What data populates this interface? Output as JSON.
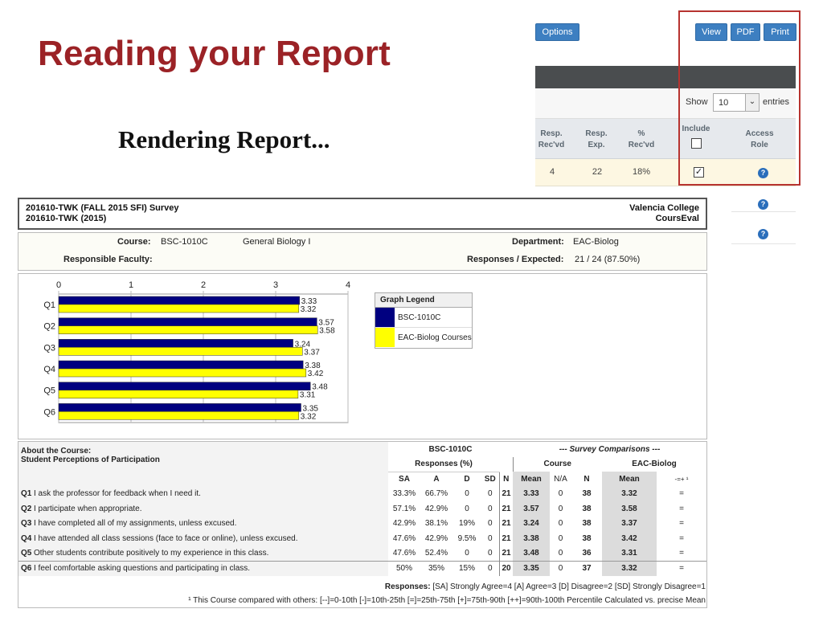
{
  "slide": {
    "title": "Reading your Report",
    "rendering_text": "Rendering Report..."
  },
  "panel": {
    "options_label": "Options",
    "view_label": "View",
    "pdf_label": "PDF",
    "print_label": "Print",
    "show_label": "Show",
    "entries_value": "10",
    "entries_label": "entries",
    "columns": [
      {
        "line1": "Resp.",
        "line2": "Rec'vd"
      },
      {
        "line1": "Resp.",
        "line2": "Exp."
      },
      {
        "line1": "%",
        "line2": "Rec'vd"
      },
      {
        "line1": "Include",
        "line2": ""
      },
      {
        "line1": "Access",
        "line2": "Role"
      }
    ],
    "row": {
      "resp_recvd": "4",
      "resp_exp": "22",
      "pct_recvd": "18%",
      "include_checked": true
    },
    "help_glyph": "?",
    "accent_color": "#3d7fc1",
    "highlight_color": "#b7332f"
  },
  "report": {
    "survey_line1": "201610-TWK (FALL 2015 SFI) Survey",
    "survey_line2": "201610-TWK (2015)",
    "college": "Valencia College",
    "system": "CoursEval",
    "course_label": "Course:",
    "course_code": "BSC-1010C",
    "course_name": "General Biology I",
    "department_label": "Department:",
    "department": "EAC-Biolog",
    "faculty_label": "Responsible Faculty:",
    "responses_label": "Responses / Expected:",
    "responses_value": "21 / 24 (87.50%)"
  },
  "chart_data": {
    "type": "bar",
    "orientation": "horizontal",
    "categories": [
      "Q1",
      "Q2",
      "Q3",
      "Q4",
      "Q5",
      "Q6"
    ],
    "series": [
      {
        "name": "BSC-1010C",
        "color": "#000080",
        "values": [
          3.33,
          3.57,
          3.24,
          3.38,
          3.48,
          3.35
        ],
        "labels": [
          "3.33",
          "3.57",
          "3.24",
          "3.38",
          "3.48",
          "3.35"
        ]
      },
      {
        "name": "EAC-Biolog Courses",
        "color": "#ffff00",
        "values": [
          3.32,
          3.58,
          3.37,
          3.42,
          3.31,
          3.32
        ],
        "labels": [
          "3.32",
          "3.58",
          "3.37",
          "3.42",
          "3.31",
          "3.32"
        ]
      }
    ],
    "xlim": [
      0,
      4
    ],
    "xticks": [
      "0",
      "1",
      "2",
      "3",
      "4"
    ],
    "legend_title": "Graph Legend",
    "legend_placement": "right"
  },
  "table": {
    "section_title": "About the Course:",
    "section_subtitle": "Student Perceptions of Participation",
    "course_group": "BSC-1010C",
    "comparison_group": "--- Survey Comparisons ---",
    "responses_pct": "Responses (%)",
    "course_sub": "Course",
    "dept_sub": "EAC-Biolog",
    "col_headers": [
      "SA",
      "A",
      "D",
      "SD",
      "N",
      "Mean",
      "N/A",
      "N",
      "Mean",
      "-=+ ¹"
    ],
    "rows": [
      {
        "q": "Q1",
        "text": "I ask the professor for feedback when I need it.",
        "sa": "33.3%",
        "a": "66.7%",
        "d": "0",
        "sd": "0",
        "n": "21",
        "mean": "3.33",
        "na": "0",
        "n2": "38",
        "mean2": "3.32",
        "cmp": "="
      },
      {
        "q": "Q2",
        "text": "I participate when appropriate.",
        "sa": "57.1%",
        "a": "42.9%",
        "d": "0",
        "sd": "0",
        "n": "21",
        "mean": "3.57",
        "na": "0",
        "n2": "38",
        "mean2": "3.58",
        "cmp": "="
      },
      {
        "q": "Q3",
        "text": "I have completed all of my assignments, unless excused.",
        "sa": "42.9%",
        "a": "38.1%",
        "d": "19%",
        "sd": "0",
        "n": "21",
        "mean": "3.24",
        "na": "0",
        "n2": "38",
        "mean2": "3.37",
        "cmp": "="
      },
      {
        "q": "Q4",
        "text": "I have attended all class sessions (face to face or online), unless excused.",
        "sa": "47.6%",
        "a": "42.9%",
        "d": "9.5%",
        "sd": "0",
        "n": "21",
        "mean": "3.38",
        "na": "0",
        "n2": "38",
        "mean2": "3.42",
        "cmp": "="
      },
      {
        "q": "Q5",
        "text": "Other students contribute positively to my experience in this class.",
        "sa": "47.6%",
        "a": "52.4%",
        "d": "0",
        "sd": "0",
        "n": "21",
        "mean": "3.48",
        "na": "0",
        "n2": "36",
        "mean2": "3.31",
        "cmp": "="
      },
      {
        "q": "Q6",
        "text": "I feel comfortable asking questions and participating in class.",
        "sa": "50%",
        "a": "35%",
        "d": "15%",
        "sd": "0",
        "n": "20",
        "mean": "3.35",
        "na": "0",
        "n2": "37",
        "mean2": "3.32",
        "cmp": "="
      }
    ],
    "footnote1_label": "Responses:",
    "footnote1_text": "[SA] Strongly Agree=4 [A] Agree=3 [D] Disagree=2 [SD] Strongly Disagree=1",
    "footnote2": "¹ This Course compared with others: [--]=0-10th  [-]=10th-25th  [=]=25th-75th  [+]=75th-90th  [++]=90th-100th Percentile   Calculated vs. precise Mean"
  }
}
